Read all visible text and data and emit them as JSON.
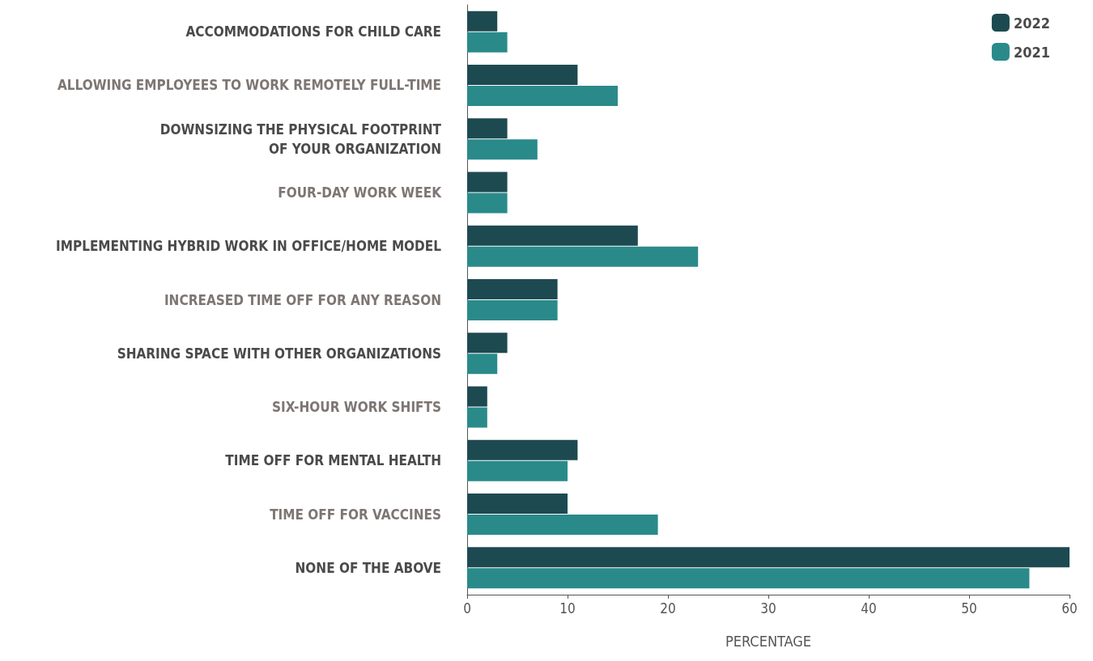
{
  "chart_data": {
    "type": "bar",
    "orientation": "horizontal",
    "categories": [
      "ACCOMMODATIONS FOR CHILD CARE",
      "ALLOWING EMPLOYEES TO WORK REMOTELY FULL-TIME",
      "DOWNSIZING THE PHYSICAL FOOTPRINT\nOF YOUR ORGANIZATION",
      "FOUR-DAY WORK WEEK",
      "IMPLEMENTING HYBRID WORK IN OFFICE/HOME MODEL",
      "INCREASED TIME OFF FOR ANY REASON",
      "SHARING SPACE WITH OTHER ORGANIZATIONS",
      "SIX-HOUR WORK SHIFTS",
      "TIME OFF FOR MENTAL HEALTH",
      "TIME OFF FOR VACCINES",
      "NONE OF THE ABOVE"
    ],
    "series": [
      {
        "name": "2022",
        "color": "#1d4a50",
        "values": [
          3,
          11,
          4,
          4,
          17,
          9,
          4,
          2,
          11,
          10,
          60
        ]
      },
      {
        "name": "2021",
        "color": "#2a8a8a",
        "values": [
          4,
          15,
          7,
          4,
          23,
          9,
          3,
          2,
          10,
          19,
          56
        ]
      }
    ],
    "xlabel": "PERCENTAGE",
    "xlim": [
      0,
      60
    ],
    "xticks": [
      0,
      10,
      20,
      30,
      40,
      50,
      60
    ],
    "grid": false,
    "legend": "top right"
  }
}
